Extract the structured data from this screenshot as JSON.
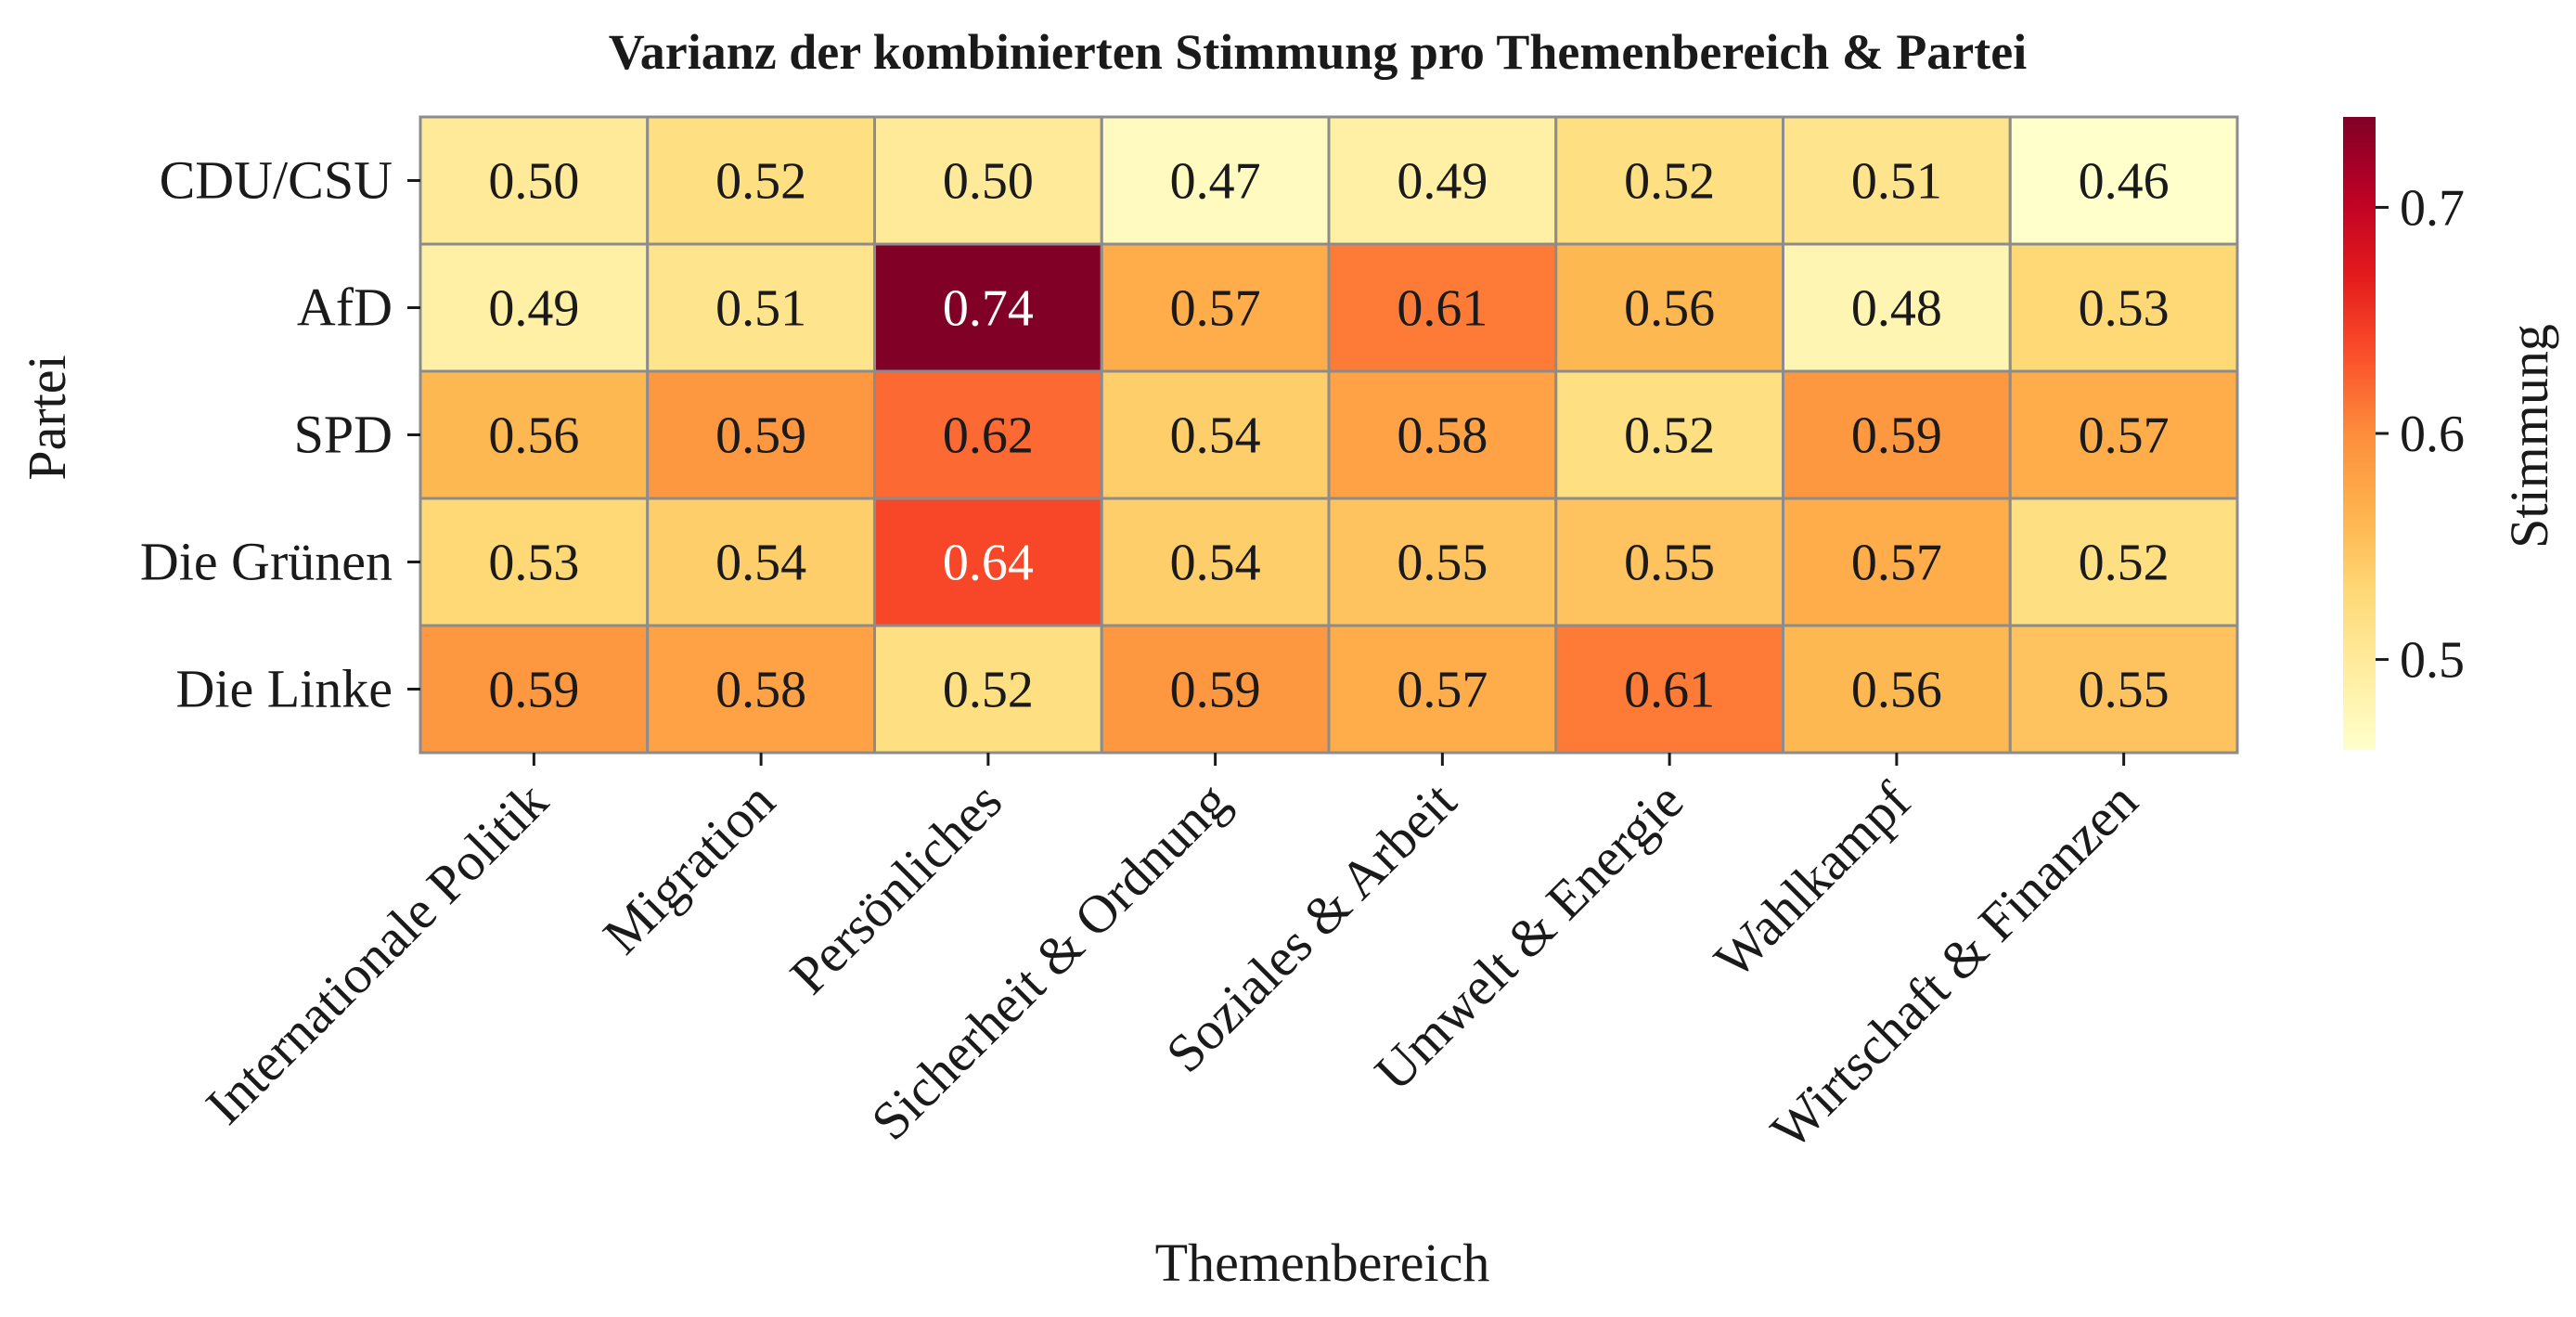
{
  "chart_data": {
    "type": "heatmap",
    "title": "Varianz der kombinierten Stimmung pro Themenbereich & Partei",
    "xlabel": "Themenbereich",
    "ylabel": "Partei",
    "colorbar_label": "Stimmung",
    "x_categories": [
      "Internationale Politik",
      "Migration",
      "Persönliches",
      "Sicherheit & Ordnung",
      "Soziales & Arbeit",
      "Umwelt & Energie",
      "Wahlkampf",
      "Wirtschaft & Finanzen"
    ],
    "y_categories": [
      "CDU/CSU",
      "AfD",
      "SPD",
      "Die Grünen",
      "Die Linke"
    ],
    "values": [
      [
        0.5,
        0.52,
        0.5,
        0.47,
        0.49,
        0.52,
        0.51,
        0.46
      ],
      [
        0.49,
        0.51,
        0.74,
        0.57,
        0.61,
        0.56,
        0.48,
        0.53
      ],
      [
        0.56,
        0.59,
        0.62,
        0.54,
        0.58,
        0.52,
        0.59,
        0.57
      ],
      [
        0.53,
        0.54,
        0.64,
        0.54,
        0.55,
        0.55,
        0.57,
        0.52
      ],
      [
        0.59,
        0.58,
        0.52,
        0.59,
        0.57,
        0.61,
        0.56,
        0.55
      ]
    ],
    "value_format": "2 decimals",
    "color_range": [
      0.46,
      0.74
    ],
    "colormap": "YlOrRd",
    "colorbar_ticks": [
      0.5,
      0.6,
      0.7
    ],
    "colorbar_tick_labels": [
      "0.5",
      "0.6",
      "0.7"
    ]
  }
}
